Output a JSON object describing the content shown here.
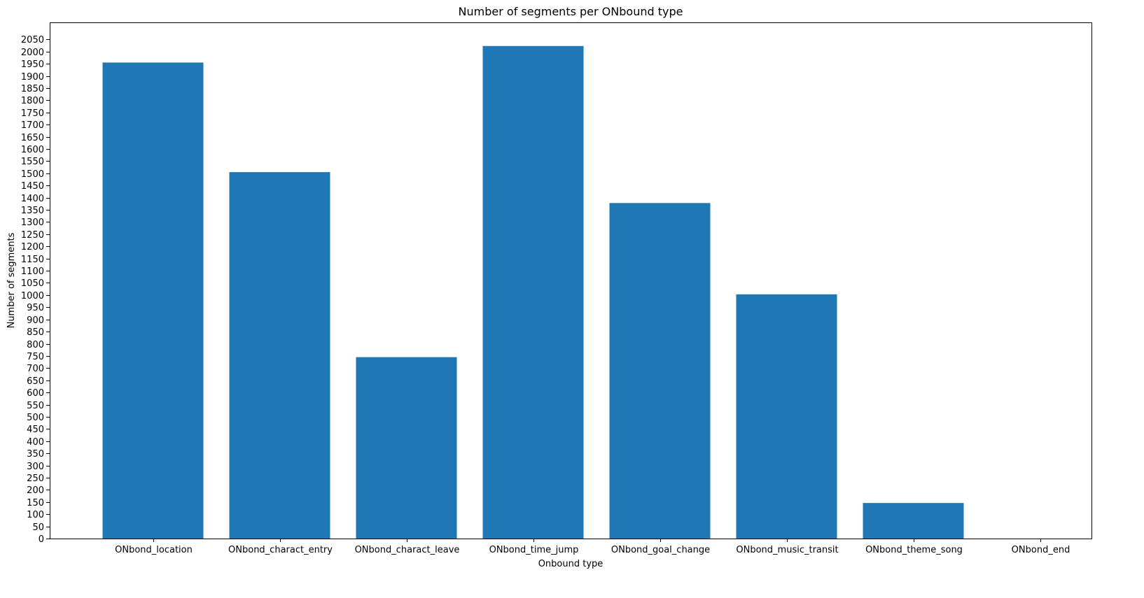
{
  "chart_data": {
    "type": "bar",
    "title": "Number of segments per ONbound type",
    "xlabel": "Onbound type",
    "ylabel": "Number of segments",
    "categories": [
      "ONbond_location",
      "ONbond_charact_entry",
      "ONbond_charact_leave",
      "ONbond_time_jump",
      "ONbond_goal_change",
      "ONbond_music_transit",
      "ONbond_theme_song",
      "ONbond_end"
    ],
    "values": [
      1955,
      1505,
      745,
      2023,
      1378,
      1003,
      146,
      0
    ],
    "ylim": [
      0,
      2120
    ],
    "ytick_step": 50,
    "ytick_max": 2050,
    "grid": false,
    "bar_color": "#1f77b4"
  }
}
